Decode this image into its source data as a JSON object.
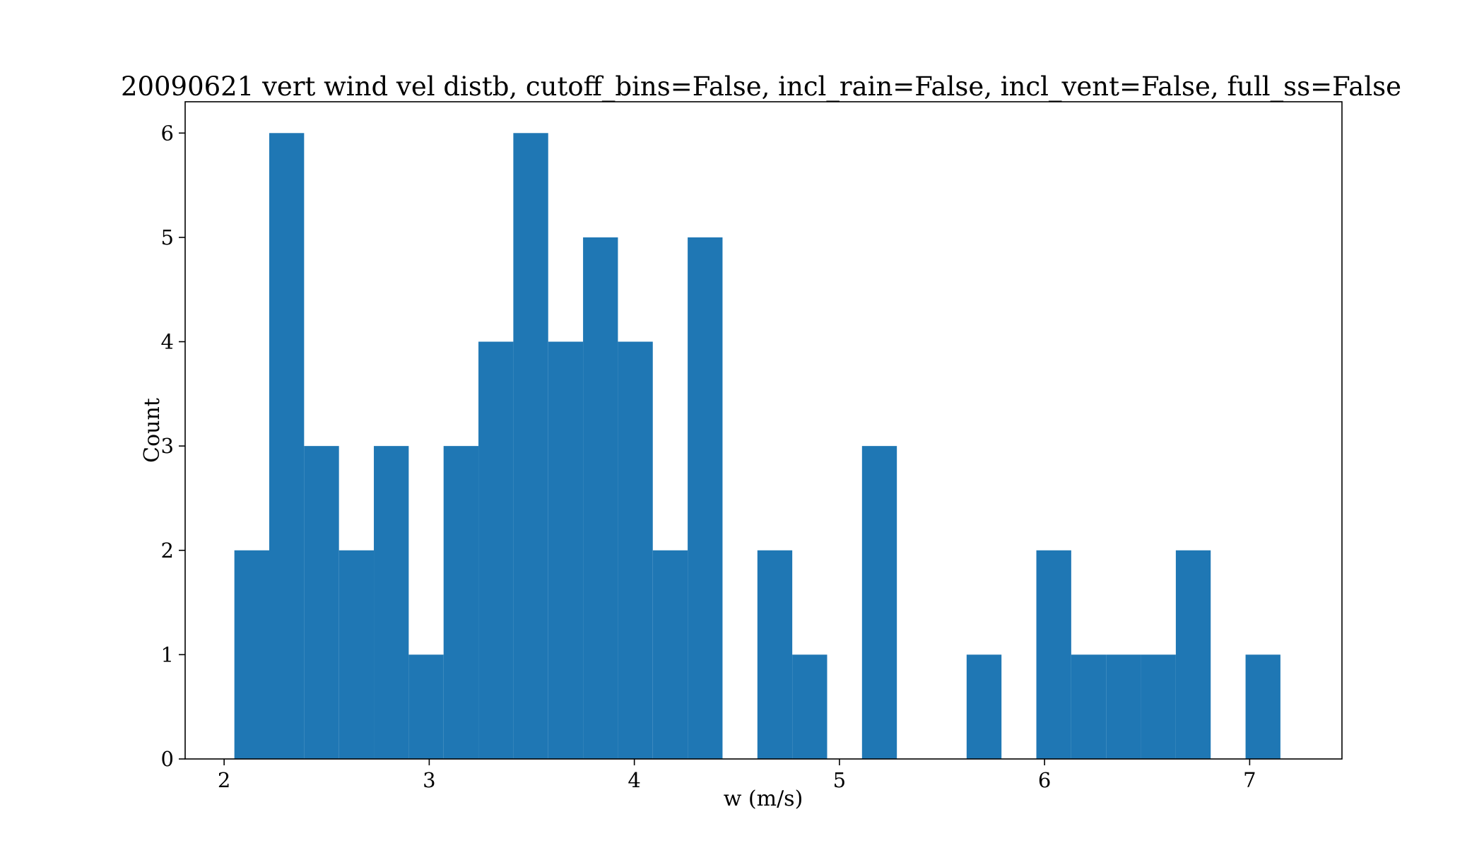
{
  "chart_data": {
    "type": "bar",
    "title": "20090621 vert wind vel distb, cutoff_bins=False, incl_rain=False, incl_vent=False, full_ss=False",
    "xlabel": "w (m/s)",
    "ylabel": "Count",
    "xlim": [
      1.81,
      7.45
    ],
    "ylim": [
      0,
      6.3
    ],
    "xticks": [
      2,
      3,
      4,
      5,
      6,
      7
    ],
    "yticks": [
      0,
      1,
      2,
      3,
      4,
      5,
      6
    ],
    "bins": [
      {
        "x0": 2.05,
        "x1": 2.22,
        "count": 2
      },
      {
        "x0": 2.22,
        "x1": 2.39,
        "count": 6
      },
      {
        "x0": 2.39,
        "x1": 2.56,
        "count": 3
      },
      {
        "x0": 2.56,
        "x1": 2.73,
        "count": 2
      },
      {
        "x0": 2.73,
        "x1": 2.9,
        "count": 3
      },
      {
        "x0": 2.9,
        "x1": 3.07,
        "count": 1
      },
      {
        "x0": 3.07,
        "x1": 3.24,
        "count": 3
      },
      {
        "x0": 3.24,
        "x1": 3.41,
        "count": 4
      },
      {
        "x0": 3.41,
        "x1": 3.58,
        "count": 6
      },
      {
        "x0": 3.58,
        "x1": 3.75,
        "count": 4
      },
      {
        "x0": 3.75,
        "x1": 3.92,
        "count": 5
      },
      {
        "x0": 3.92,
        "x1": 4.09,
        "count": 4
      },
      {
        "x0": 4.09,
        "x1": 4.26,
        "count": 2
      },
      {
        "x0": 4.26,
        "x1": 4.43,
        "count": 5
      },
      {
        "x0": 4.43,
        "x1": 4.6,
        "count": 0
      },
      {
        "x0": 4.6,
        "x1": 4.77,
        "count": 2
      },
      {
        "x0": 4.77,
        "x1": 4.94,
        "count": 1
      },
      {
        "x0": 4.94,
        "x1": 5.11,
        "count": 0
      },
      {
        "x0": 5.11,
        "x1": 5.28,
        "count": 3
      },
      {
        "x0": 5.28,
        "x1": 5.45,
        "count": 0
      },
      {
        "x0": 5.45,
        "x1": 5.62,
        "count": 0
      },
      {
        "x0": 5.62,
        "x1": 5.79,
        "count": 1
      },
      {
        "x0": 5.79,
        "x1": 5.96,
        "count": 0
      },
      {
        "x0": 5.96,
        "x1": 6.13,
        "count": 2
      },
      {
        "x0": 6.13,
        "x1": 6.3,
        "count": 1
      },
      {
        "x0": 6.3,
        "x1": 6.47,
        "count": 1
      },
      {
        "x0": 6.47,
        "x1": 6.64,
        "count": 1
      },
      {
        "x0": 6.64,
        "x1": 6.81,
        "count": 2
      },
      {
        "x0": 6.81,
        "x1": 6.98,
        "count": 0
      },
      {
        "x0": 6.98,
        "x1": 7.15,
        "count": 1
      }
    ],
    "bar_color": "#1f77b4",
    "grid": false,
    "legend": null
  }
}
